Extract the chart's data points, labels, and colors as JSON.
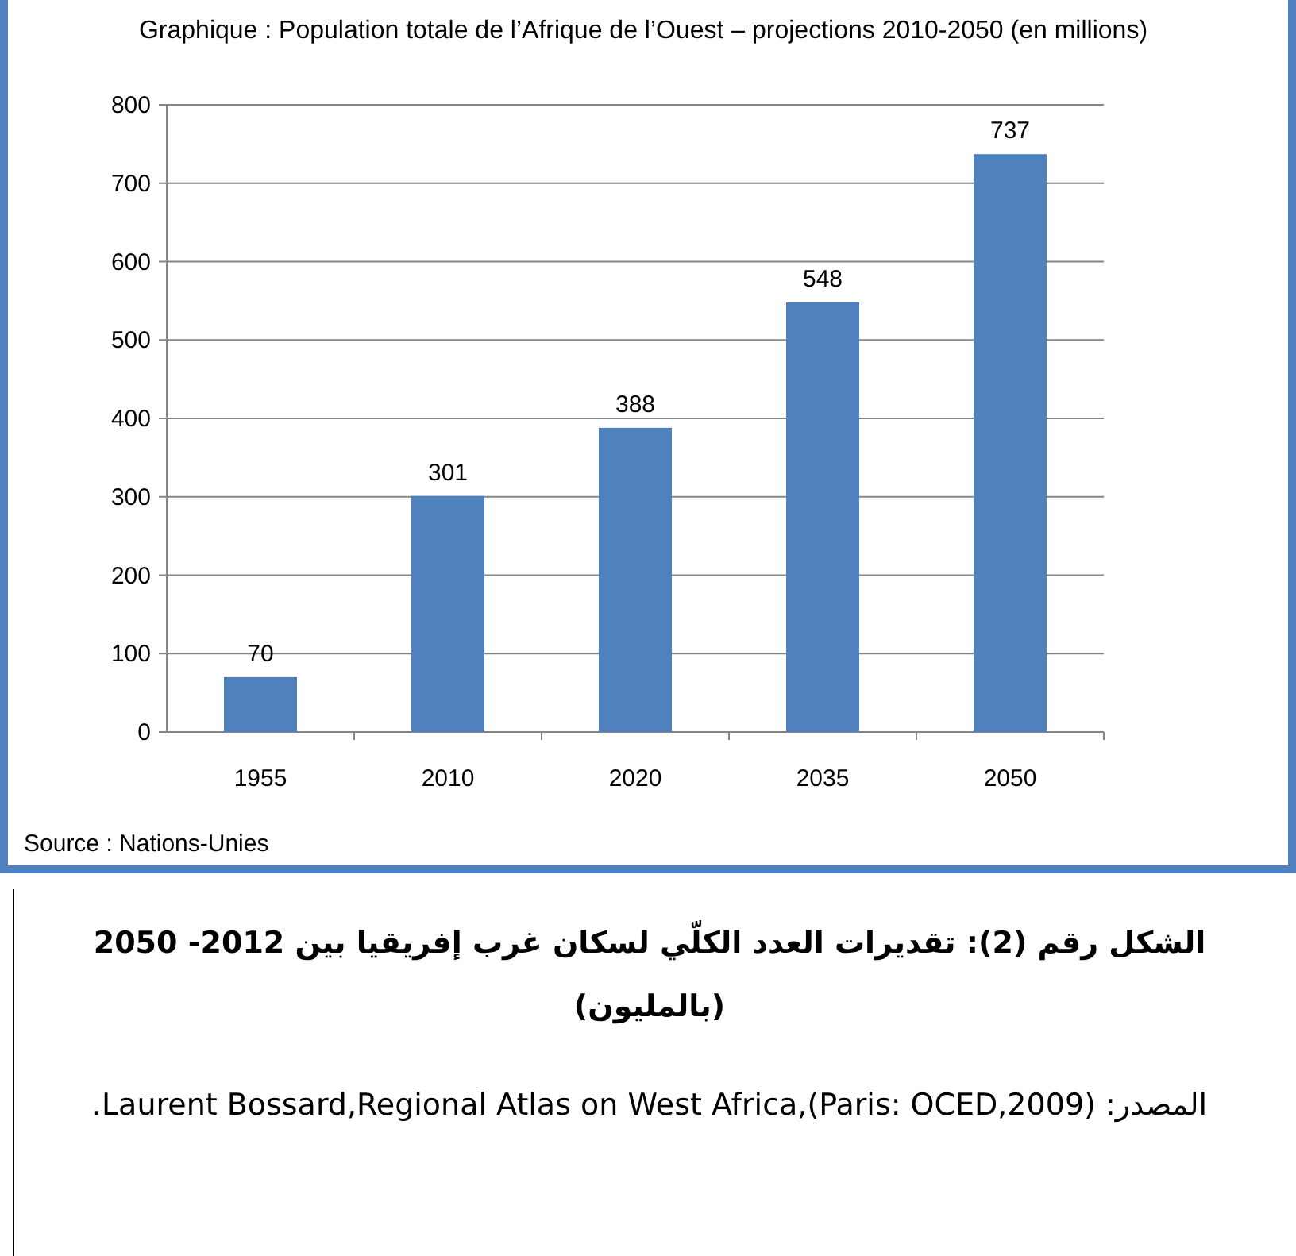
{
  "chart_data": {
    "type": "bar",
    "title": "Graphique : Population totale de l’Afrique de l’Ouest – projections 2010-2050 (en millions)",
    "categories": [
      "1955",
      "2010",
      "2020",
      "2035",
      "2050"
    ],
    "values": [
      70,
      301,
      388,
      548,
      737
    ],
    "color": "#4f81bd",
    "ylim": [
      0,
      800
    ],
    "yticks": [
      0,
      100,
      200,
      300,
      400,
      500,
      600,
      700,
      800
    ],
    "grid": "y",
    "data_labels": true,
    "annotations": [
      "Source : Nations-Unies",
      "الشكل رقم (2): تقديرات العدد الكلّي لسكان غرب إفريقيا بين 2012- 2050 (بالمليون)",
      "المصدر: Laurent Bossard,Regional Atlas on West Africa,(Paris: OCED,2009)."
    ]
  }
}
